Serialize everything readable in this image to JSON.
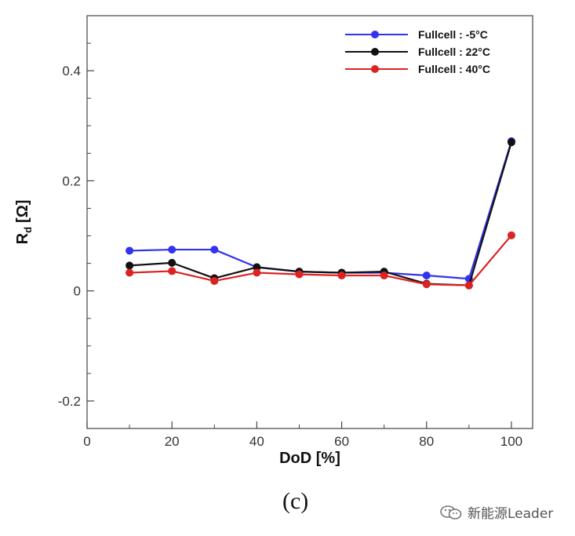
{
  "chart_data": {
    "type": "line",
    "title": "",
    "xlabel": "DoD [%]",
    "ylabel": "R",
    "ylabel_sub": "d",
    "ylabel_unit": "[Ω]",
    "xlim": [
      0,
      105
    ],
    "ylim": [
      -0.25,
      0.5
    ],
    "xticks": [
      0,
      20,
      40,
      60,
      80,
      100
    ],
    "xtick_labels": [
      "0",
      "20",
      "40",
      "60",
      "80",
      "100"
    ],
    "yticks": [
      -0.2,
      0,
      0.2,
      0.4
    ],
    "ytick_labels": [
      "-0.2",
      "0",
      "0.2",
      "0.4"
    ],
    "x": [
      10,
      20,
      30,
      40,
      50,
      60,
      70,
      80,
      90,
      100
    ],
    "series": [
      {
        "name": "Fullcell : -5",
        "unit": "°C",
        "color": "#3333ee",
        "values": [
          0.073,
          0.075,
          0.075,
          0.043,
          0.035,
          0.033,
          0.033,
          0.028,
          0.022,
          0.272
        ]
      },
      {
        "name": "Fullcell : 22",
        "unit": "°C",
        "color": "#111111",
        "values": [
          0.046,
          0.051,
          0.023,
          0.043,
          0.035,
          0.033,
          0.035,
          0.013,
          0.01,
          0.27
        ]
      },
      {
        "name": "Fullcell : 40",
        "unit": "°C",
        "color": "#dd2222",
        "values": [
          0.033,
          0.036,
          0.018,
          0.033,
          0.03,
          0.028,
          0.028,
          0.012,
          0.01,
          0.101
        ]
      }
    ],
    "legend_position": "top-right",
    "grid": false
  },
  "caption": "(c)",
  "watermark": {
    "text": "新能源Leader",
    "icon": "wechat-icon"
  }
}
